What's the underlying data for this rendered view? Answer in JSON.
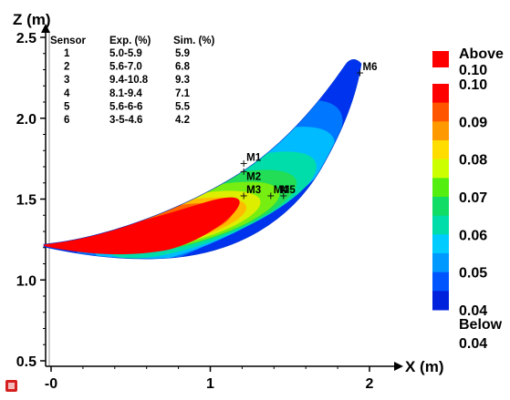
{
  "chart_data": {
    "type": "heatmap",
    "xlabel": "X (m)",
    "ylabel": "Z (m)",
    "xlim": [
      -0.05,
      2.15
    ],
    "ylim": [
      0.48,
      2.55
    ],
    "x_ticks": [
      {
        "value": 0,
        "label": "-0"
      },
      {
        "value": 1,
        "label": "1"
      },
      {
        "value": 2,
        "label": "2"
      }
    ],
    "y_ticks": [
      {
        "value": 0.5,
        "label": "0.5"
      },
      {
        "value": 1.0,
        "label": "1.0"
      },
      {
        "value": 1.5,
        "label": "1.5"
      },
      {
        "value": 2.0,
        "label": "2.0"
      },
      {
        "value": 2.5,
        "label": "2.5"
      }
    ],
    "colorbar": {
      "above_label": "Above",
      "above_value": "0.10",
      "below_label": "Below",
      "below_value": "0.04",
      "tick_labels": [
        "0.10",
        "0.09",
        "0.08",
        "0.07",
        "0.06",
        "0.05",
        "0.04"
      ],
      "colors": [
        "#ff0000",
        "#ff5500",
        "#ff9900",
        "#ffdd00",
        "#ccff00",
        "#55ee11",
        "#11dd66",
        "#00ddaa",
        "#00ccff",
        "#0099ff",
        "#0055ff",
        "#0022dd"
      ],
      "above_color": "#ff0000"
    },
    "sensors": [
      {
        "name": "M1",
        "x": 1.21,
        "y": 1.72
      },
      {
        "name": "M2",
        "x": 1.21,
        "y": 1.67
      },
      {
        "name": "M3",
        "x": 1.21,
        "y": 1.52
      },
      {
        "name": "M4",
        "x": 1.38,
        "y": 1.52
      },
      {
        "name": "M5",
        "x": 1.46,
        "y": 1.52
      },
      {
        "name": "M6",
        "x": 1.94,
        "y": 2.28
      }
    ],
    "table": {
      "headers": [
        "Sensor",
        "Exp. (%)",
        "Sim. (%)"
      ],
      "rows": [
        [
          "1",
          "5.0-5.9",
          "5.9"
        ],
        [
          "2",
          "5.6-7.0",
          "6.8"
        ],
        [
          "3",
          "9.4-10.8",
          "9.3"
        ],
        [
          "4",
          "8.1-9.4",
          "7.1"
        ],
        [
          "5",
          "5.6-6-6",
          "5.5"
        ],
        [
          "6",
          "3-5-4.6",
          "4.2"
        ]
      ]
    }
  }
}
